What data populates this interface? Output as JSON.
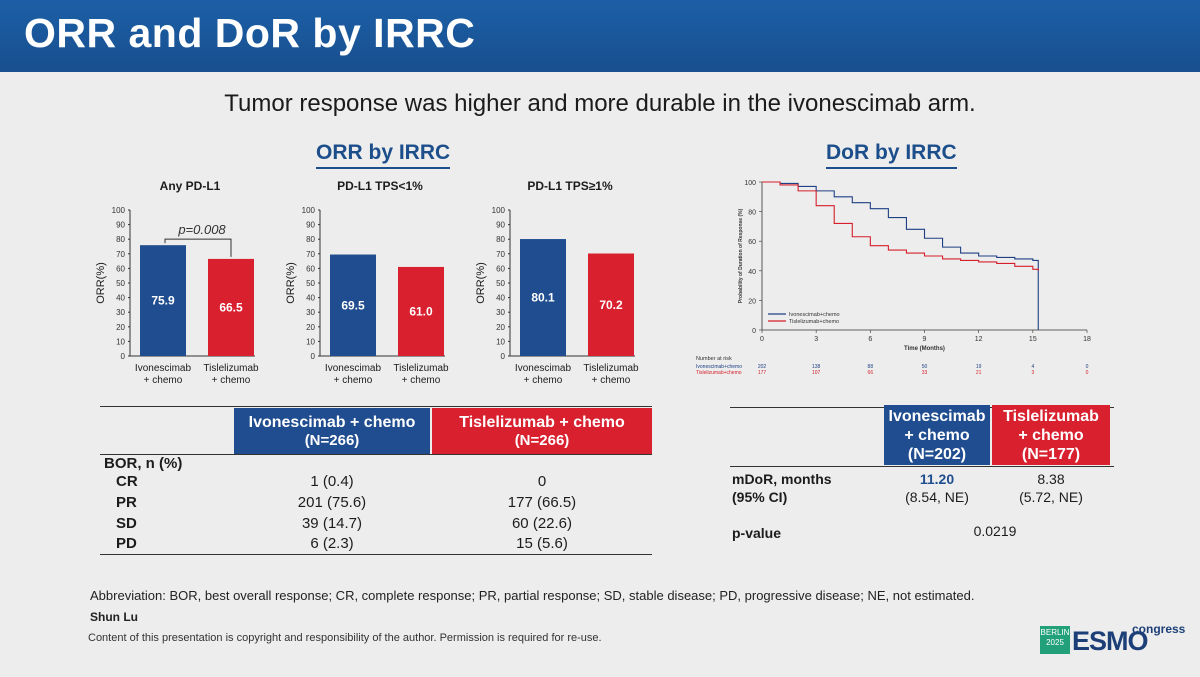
{
  "slide": {
    "title": "ORR and DoR by IRRC",
    "subtitle": "Tumor response was higher and more durable in the ivonescimab arm."
  },
  "orr_section": {
    "heading": "ORR by IRRC"
  },
  "dor_section": {
    "heading": "DoR by IRRC"
  },
  "colors": {
    "ivonescimab": "#1f4d8f",
    "tislelizumab": "#d8202f",
    "title_bar": "#1c5fa6"
  },
  "chart_data": [
    {
      "type": "bar",
      "title": "Any PD-L1",
      "ylabel": "ORR(%)",
      "ylim": [
        0,
        100
      ],
      "yticks": [
        "0",
        "10",
        "20",
        "30",
        "40",
        "50",
        "60",
        "70",
        "80",
        "90",
        "100"
      ],
      "categories": [
        "Ivonescimab\n+ chemo",
        "Tislelizumab\n+ chemo"
      ],
      "values": [
        75.9,
        66.5
      ],
      "labels": [
        "75.9",
        "66.5"
      ],
      "annotation": "p=0.008"
    },
    {
      "type": "bar",
      "title": "PD-L1 TPS<1%",
      "ylabel": "ORR(%)",
      "ylim": [
        0,
        100
      ],
      "yticks": [
        "0",
        "10",
        "20",
        "30",
        "40",
        "50",
        "60",
        "70",
        "80",
        "90",
        "100"
      ],
      "categories": [
        "Ivonescimab\n+ chemo",
        "Tislelizumab\n+ chemo"
      ],
      "values": [
        69.5,
        61.0
      ],
      "labels": [
        "69.5",
        "61.0"
      ]
    },
    {
      "type": "bar",
      "title": "PD-L1 TPS≥1%",
      "ylabel": "ORR(%)",
      "ylim": [
        0,
        100
      ],
      "yticks": [
        "0",
        "10",
        "20",
        "30",
        "40",
        "50",
        "60",
        "70",
        "80",
        "90",
        "100"
      ],
      "categories": [
        "Ivonescimab\n+ chemo",
        "Tislelizumab\n+ chemo"
      ],
      "values": [
        80.1,
        70.2
      ],
      "labels": [
        "80.1",
        "70.2"
      ]
    },
    {
      "type": "line",
      "title": "DoR by IRRC",
      "xlabel": "Time (Months)",
      "ylabel": "Probability of Duration of Response (%)",
      "xlim": [
        0,
        18
      ],
      "ylim": [
        0,
        100
      ],
      "xticks": [
        "0",
        "3",
        "6",
        "9",
        "12",
        "15",
        "18"
      ],
      "yticks": [
        "0",
        "20",
        "40",
        "60",
        "80",
        "100"
      ],
      "series": [
        {
          "name": "Ivonescimab+chemo",
          "x": [
            0,
            1,
            2,
            3,
            4,
            5,
            6,
            7,
            8,
            9,
            10,
            11,
            12,
            13,
            14,
            15,
            15.3
          ],
          "y": [
            100,
            99,
            97,
            94,
            90,
            86,
            82,
            76,
            68,
            62,
            56,
            52,
            50,
            49,
            48,
            47,
            0
          ]
        },
        {
          "name": "Tislelizumab+chemo",
          "x": [
            0,
            1,
            2,
            3,
            4,
            5,
            6,
            7,
            8,
            9,
            10,
            11,
            12,
            13,
            14,
            15,
            15.3
          ],
          "y": [
            100,
            98,
            94,
            84,
            72,
            63,
            57,
            54,
            52,
            50,
            48,
            47,
            46,
            45,
            43,
            41,
            40
          ]
        }
      ],
      "risk_table": {
        "title": "Number at risk",
        "rows": [
          {
            "name": "Ivonescimab+chemo",
            "values": [
              "202",
              "138",
              "88",
              "50",
              "19",
              "4",
              "0"
            ]
          },
          {
            "name": "Tislelizumab+chemo",
            "values": [
              "177",
              "107",
              "66",
              "33",
              "21",
              "3",
              "0"
            ]
          }
        ]
      }
    }
  ],
  "bor_table": {
    "headers": [
      {
        "line1": "Ivonescimab + chemo",
        "line2": "(N=266)"
      },
      {
        "line1": "Tislelizumab + chemo",
        "line2": "(N=266)"
      }
    ],
    "section_label": "BOR, n (%)",
    "rows": [
      {
        "label": "CR",
        "ivo": "1 (0.4)",
        "tis": "0"
      },
      {
        "label": "PR",
        "ivo": "201 (75.6)",
        "tis": "177 (66.5)"
      },
      {
        "label": "SD",
        "ivo": "39 (14.7)",
        "tis": "60 (22.6)"
      },
      {
        "label": "PD",
        "ivo": "6 (2.3)",
        "tis": "15 (5.6)"
      }
    ]
  },
  "dor_table": {
    "headers": [
      {
        "line1": "Ivonescimab",
        "line2": "+ chemo",
        "line3": "(N=202)"
      },
      {
        "line1": "Tislelizumab",
        "line2": "+ chemo",
        "line3": "(N=177)"
      }
    ],
    "mdor_label": "mDoR, months",
    "ci_label": "(95% CI)",
    "ivo_mdor": "11.20",
    "ivo_ci": "(8.54, NE)",
    "tis_mdor": "8.38",
    "tis_ci": "(5.72, NE)",
    "p_label": "p-value",
    "p_value": "0.0219"
  },
  "footer": {
    "abbreviation": "Abbreviation: BOR, best overall response; CR, complete response; PR, partial response; SD, stable disease; PD, progressive disease; NE, not estimated.",
    "author": "Shun Lu",
    "copyright": "Content of this presentation is copyright and responsibility of the author. Permission is required for re-use."
  },
  "logo": {
    "box_line1": "BERLIN",
    "box_line2": "2025",
    "brand": "ESMO",
    "tag": "congress"
  }
}
